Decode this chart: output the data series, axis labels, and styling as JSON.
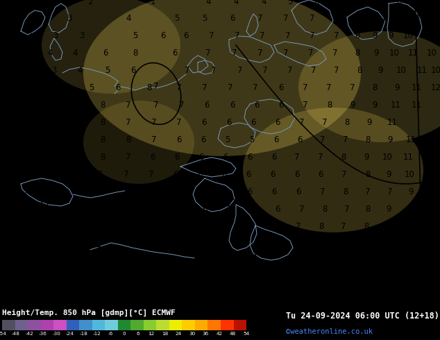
{
  "title": "Height/Temp. 850 hPa [gdmp][°C] ECMWF",
  "datetime_str": "Tu 24-09-2024 06:00 UTC (12+18)",
  "credit": "©weatheronline.co.uk",
  "colorbar_ticks": [
    -54,
    -48,
    -42,
    -36,
    -30,
    -24,
    -18,
    -12,
    -6,
    0,
    6,
    12,
    18,
    24,
    30,
    36,
    42,
    48,
    54
  ],
  "colorbar_colors": [
    "#505060",
    "#706090",
    "#9050a0",
    "#b040b0",
    "#cc50c0",
    "#3060bb",
    "#4090cc",
    "#50b8dd",
    "#70ccdd",
    "#208830",
    "#50aa30",
    "#88cc30",
    "#bbdd30",
    "#eeee00",
    "#ffcc00",
    "#ffaa00",
    "#ff7700",
    "#ff3300",
    "#bb1100"
  ],
  "bg_yellow_light": "#fce020",
  "bg_yellow_dark": "#e8a800",
  "map_bg": "#f5c800",
  "coast_color": "#7799bb",
  "contour_color": "#000000",
  "contour_lw": 1.2,
  "coast_lw": 0.7,
  "num_fontsize": 8.5,
  "num_color": "#000000"
}
